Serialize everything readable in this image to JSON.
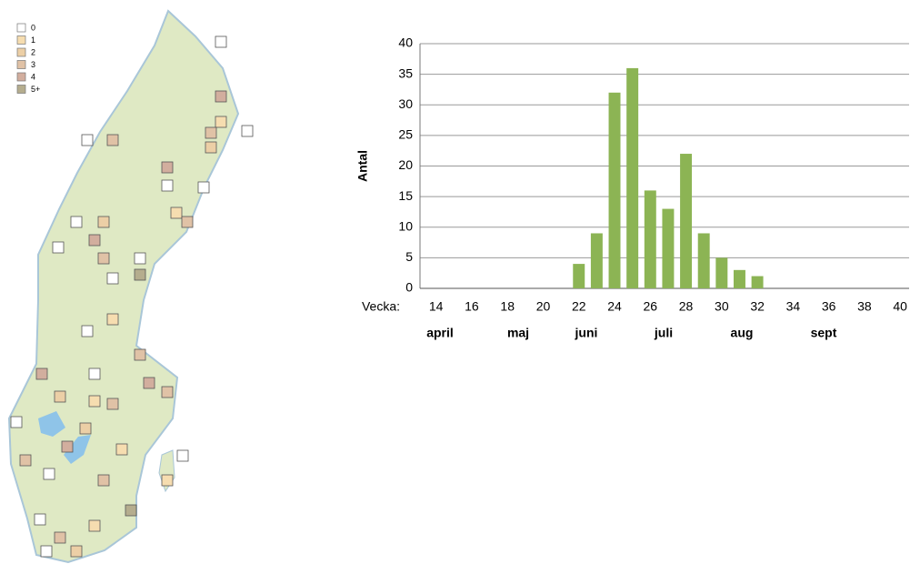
{
  "map_legend": {
    "items": [
      {
        "name": "0",
        "color": "#ffffff"
      },
      {
        "name": "1",
        "color": "#f6ddb0"
      },
      {
        "name": "2",
        "color": "#eccfa6"
      },
      {
        "name": "3",
        "color": "#e0c2a6"
      },
      {
        "name": "4",
        "color": "#d2ae9e"
      },
      {
        "name": "5+",
        "color": "#b5ad8e"
      }
    ]
  },
  "chart_data": {
    "type": "bar",
    "x": [
      22,
      23,
      24,
      25,
      26,
      27,
      28,
      29,
      30,
      31,
      32
    ],
    "values": [
      4,
      9,
      32,
      36,
      16,
      13,
      22,
      9,
      5,
      3,
      2
    ],
    "color": "#8cb454",
    "xlim": [
      13.1,
      40.5
    ],
    "xticks": [
      14,
      16,
      18,
      20,
      22,
      24,
      26,
      28,
      30,
      32,
      34,
      36,
      38,
      40
    ],
    "ylim": [
      0,
      40
    ],
    "yticks": [
      0,
      5,
      10,
      15,
      20,
      25,
      30,
      35,
      40
    ],
    "grid": true,
    "ylabel": "Antal",
    "xlabel": "Vecka:",
    "annotations": [
      "april",
      "maj",
      "juni",
      "juli",
      "aug",
      "sept"
    ]
  }
}
